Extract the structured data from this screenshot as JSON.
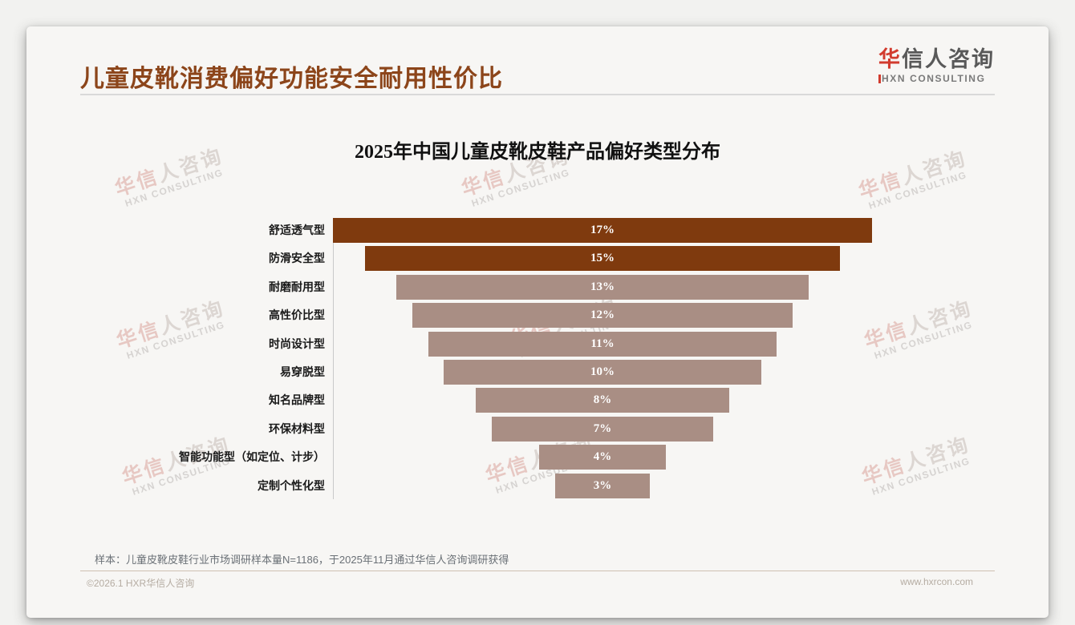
{
  "header": {
    "title": "儿童皮靴消费偏好功能安全耐用性价比"
  },
  "logo": {
    "cn_first": "华",
    "cn_rest": "信人咨询",
    "en": "HXN CONSULTING"
  },
  "watermark": {
    "cn_a": "华信",
    "cn_b": "人咨询",
    "en": "HXN CONSULTING"
  },
  "chart_data": {
    "type": "bar",
    "variant": "centered-funnel-horizontal",
    "title": "2025年中国儿童皮靴皮鞋产品偏好类型分布",
    "categories": [
      "舒适透气型",
      "防滑安全型",
      "耐磨耐用型",
      "高性价比型",
      "时尚设计型",
      "易穿脱型",
      "知名品牌型",
      "环保材料型",
      "智能功能型（如定位、计步）",
      "定制个性化型"
    ],
    "values": [
      17,
      15,
      13,
      12,
      11,
      10,
      8,
      7,
      4,
      3
    ],
    "unit": "%",
    "value_labels": [
      "17%",
      "15%",
      "13%",
      "12%",
      "11%",
      "10%",
      "8%",
      "7%",
      "4%",
      "3%"
    ],
    "xlabel": "",
    "ylabel": "",
    "legend": false,
    "grid": false,
    "bar_color_highlight": "#7F3A0E",
    "bar_color_normal": "#A98E84",
    "highlight_count": 2,
    "value_label_color": "#ffffff"
  },
  "note": "样本：儿童皮靴皮鞋行业市场调研样本量N=1186，于2025年11月通过华信人咨询调研获得",
  "footer": {
    "left": "©2026.1 HXR华信人咨询",
    "right": "www.hxrcon.com"
  },
  "colors": {
    "title_accent": "#8C451A",
    "logo_red": "#D23B2E",
    "bar_dark": "#7F3A0E",
    "bar_light": "#A98E84",
    "card_bg": "#f7f6f4"
  }
}
